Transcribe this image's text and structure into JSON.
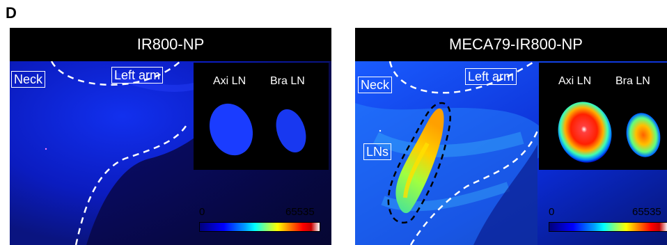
{
  "panel_letter": "D",
  "panels": [
    {
      "title": "IR800-NP",
      "region_labels": [
        "Neck",
        "Left arm"
      ],
      "inset_labels": [
        "Axi LN",
        "Bra LN"
      ],
      "colorbar": {
        "min": "0",
        "max": "65535"
      }
    },
    {
      "title": "MECA79-IR800-NP",
      "region_labels": [
        "Neck",
        "Left arm",
        "LNs"
      ],
      "inset_labels": [
        "Axi LN",
        "Bra LN"
      ],
      "colorbar": {
        "min": "0",
        "max": "65535"
      }
    }
  ],
  "colors": {
    "background_blue": "#0a1ec8",
    "dark_blue": "#050a40",
    "header_black": "#000000",
    "outline_white": "#ffffff",
    "outline_black": "#000000"
  }
}
